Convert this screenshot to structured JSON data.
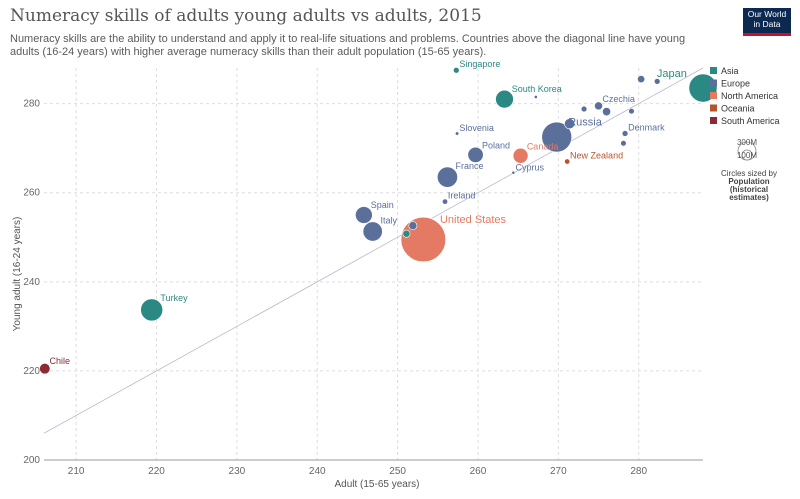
{
  "header": {
    "title": "Numeracy skills of adults young adults vs adults, 2015",
    "subtitle": "Numeracy skills are the ability to understand and apply it to real-life situations and problems. Countries above the diagonal line have young adults (16-24 years) with higher average numeracy skills than their adult population (15-65 years).",
    "logo_line1": "Our World",
    "logo_line2": "in Data"
  },
  "legend": {
    "items": [
      {
        "label": "Asia",
        "color": "#2a8a83"
      },
      {
        "label": "Europe",
        "color": "#5b6f9b"
      },
      {
        "label": "North America",
        "color": "#e47a63"
      },
      {
        "label": "Oceania",
        "color": "#b5552c"
      },
      {
        "label": "South America",
        "color": "#8b2b35"
      }
    ],
    "size_big": "300M",
    "size_small": "100M",
    "size_title_1": "Circles sized by",
    "size_title_2": "Population",
    "size_title_3": "(historical",
    "size_title_4": "estimates)"
  },
  "chart_data": {
    "type": "scatter",
    "title": "Numeracy skills of adults young adults vs adults, 2015",
    "xlabel": "Adult (15-65 years)",
    "ylabel": "Young adult (16-24 years)",
    "xlim": [
      206,
      288
    ],
    "ylim": [
      200,
      288
    ],
    "xticks": [
      210,
      220,
      230,
      240,
      250,
      260,
      270,
      280
    ],
    "yticks": [
      200,
      220,
      240,
      260,
      280
    ],
    "grid": true,
    "legend_position": "right",
    "diagonal_line": true,
    "points": [
      {
        "label": "Japan",
        "x": 288,
        "y": 283.5,
        "region": "Asia",
        "population_m": 127
      },
      {
        "label": "Singapore",
        "x": 257.3,
        "y": 287.5,
        "region": "Asia",
        "population_m": 5.5
      },
      {
        "label": "South Korea",
        "x": 263.3,
        "y": 281,
        "region": "Asia",
        "population_m": 51
      },
      {
        "label": "Czechia",
        "x": 275,
        "y": 279.5,
        "region": "Europe",
        "population_m": 10.5
      },
      {
        "label": "Russia",
        "x": 269.8,
        "y": 272.5,
        "region": "Europe",
        "population_m": 144
      },
      {
        "label": "Denmark",
        "x": 278.3,
        "y": 273.3,
        "region": "Europe",
        "population_m": 5.7
      },
      {
        "label": "Slovenia",
        "x": 257.4,
        "y": 273.3,
        "region": "Europe",
        "population_m": 2
      },
      {
        "label": "Poland",
        "x": 259.7,
        "y": 268.5,
        "region": "Europe",
        "population_m": 38
      },
      {
        "label": "Canada",
        "x": 265.3,
        "y": 268.3,
        "region": "North America",
        "population_m": 36
      },
      {
        "label": "New Zealand",
        "x": 271.1,
        "y": 267,
        "region": "Oceania",
        "population_m": 4.6
      },
      {
        "label": "France",
        "x": 256.2,
        "y": 263.5,
        "region": "Europe",
        "population_m": 66
      },
      {
        "label": "Cyprus",
        "x": 264.4,
        "y": 264.5,
        "region": "Europe",
        "population_m": 1.2
      },
      {
        "label": "Ireland",
        "x": 255.9,
        "y": 258,
        "region": "Europe",
        "population_m": 4.7
      },
      {
        "label": "Spain",
        "x": 245.8,
        "y": 255,
        "region": "Europe",
        "population_m": 46
      },
      {
        "label": "United States",
        "x": 253.2,
        "y": 249.5,
        "region": "North America",
        "population_m": 320
      },
      {
        "label": "Italy",
        "x": 246.9,
        "y": 251.3,
        "region": "Europe",
        "population_m": 60
      },
      {
        "label": "Turkey",
        "x": 219.4,
        "y": 233.7,
        "region": "Asia",
        "population_m": 78
      },
      {
        "label": "Chile",
        "x": 206.1,
        "y": 220.5,
        "region": "South America",
        "population_m": 18
      },
      {
        "label": "",
        "x": 280.3,
        "y": 285.5,
        "region": "Europe",
        "population_m": 8.6
      },
      {
        "label": "",
        "x": 282.3,
        "y": 285,
        "region": "Europe",
        "population_m": 5.5
      },
      {
        "label": "",
        "x": 267.2,
        "y": 281.5,
        "region": "Europe",
        "population_m": 1.3
      },
      {
        "label": "",
        "x": 273.2,
        "y": 278.8,
        "region": "Europe",
        "population_m": 5.4
      },
      {
        "label": "",
        "x": 276,
        "y": 278.2,
        "region": "Europe",
        "population_m": 11
      },
      {
        "label": "",
        "x": 271.4,
        "y": 275.5,
        "region": "Europe",
        "population_m": 17
      },
      {
        "label": "",
        "x": 279.1,
        "y": 278.3,
        "region": "Europe",
        "population_m": 5.2
      },
      {
        "label": "",
        "x": 278.1,
        "y": 271.1,
        "region": "Europe",
        "population_m": 5.2
      },
      {
        "label": "",
        "x": 251.9,
        "y": 252.6,
        "region": "Europe",
        "population_m": 10.8
      },
      {
        "label": "",
        "x": 251.1,
        "y": 250.8,
        "region": "Asia",
        "population_m": 8.4
      }
    ]
  }
}
